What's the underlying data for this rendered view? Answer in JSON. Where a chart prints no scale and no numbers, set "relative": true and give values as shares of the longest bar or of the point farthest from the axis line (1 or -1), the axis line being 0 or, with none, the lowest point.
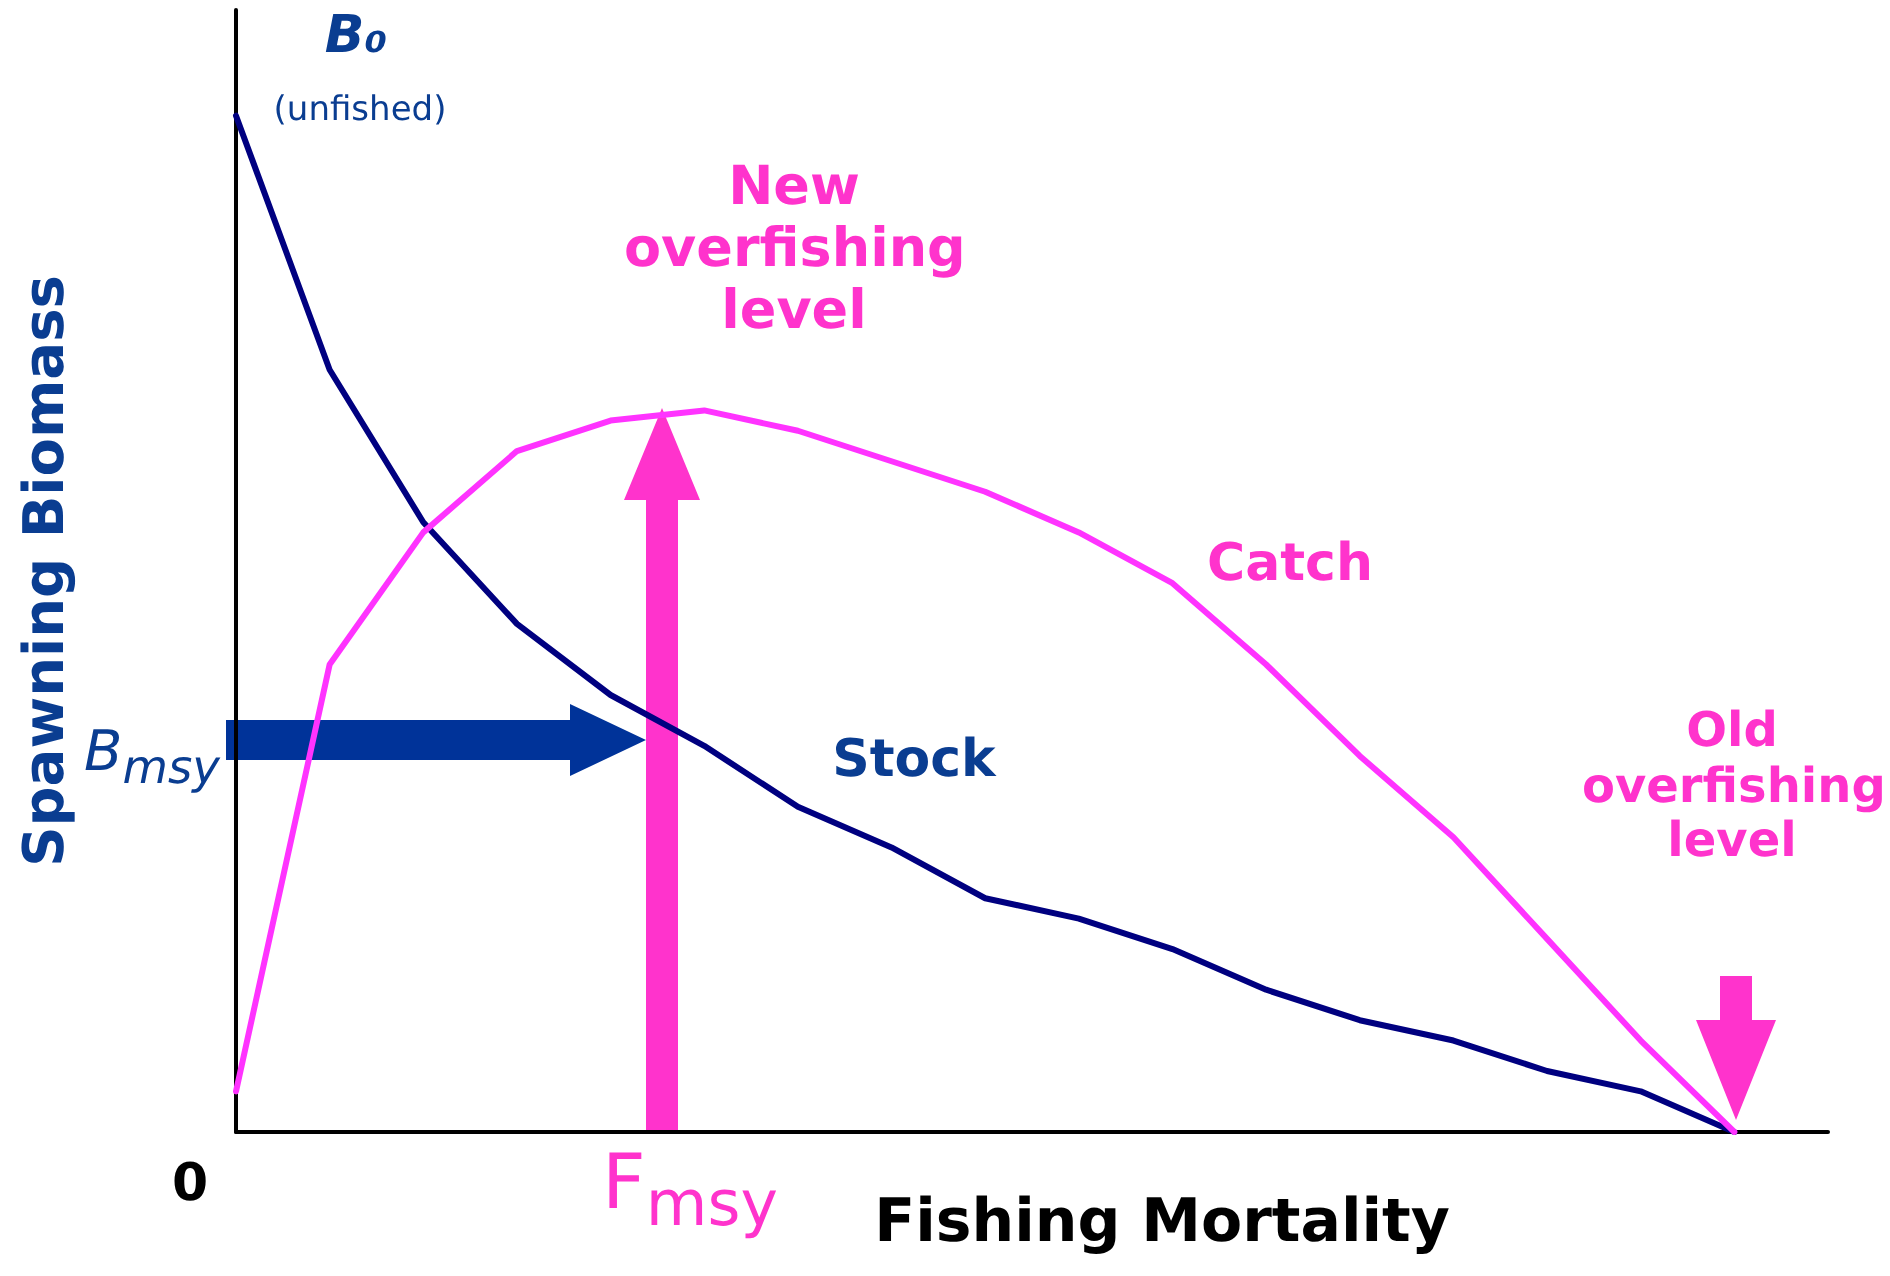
{
  "chart_data": {
    "type": "line",
    "relative": true,
    "xlabel": "Fishing Mortality",
    "ylabel": "Spawning Biomass",
    "categories": [
      null,
      null,
      null,
      null,
      null,
      null,
      null,
      null,
      null,
      null,
      null,
      null,
      null,
      null,
      null,
      null,
      null,
      null
    ],
    "series": [
      {
        "name": "Stock",
        "color": "#000080",
        "values": [
          1.0,
          0.75,
          0.6,
          0.5,
          0.43,
          0.38,
          0.32,
          0.28,
          0.23,
          0.21,
          0.18,
          0.14,
          0.11,
          0.09,
          0.06,
          0.04,
          0.0,
          null
        ]
      },
      {
        "name": "Catch",
        "color": "#ff33ff",
        "values": [
          0.04,
          0.46,
          0.59,
          0.67,
          0.7,
          0.71,
          0.69,
          0.66,
          0.63,
          0.59,
          0.54,
          0.46,
          0.37,
          0.29,
          0.19,
          0.09,
          0.0,
          null
        ]
      }
    ],
    "annotations": [
      "B₀",
      "(unfished)",
      "New overfishing level",
      "Old overfishing level",
      "B$_{msy}$",
      "F$_{msy}$",
      "0"
    ],
    "marker": "none",
    "line_style": "solid"
  }
}
